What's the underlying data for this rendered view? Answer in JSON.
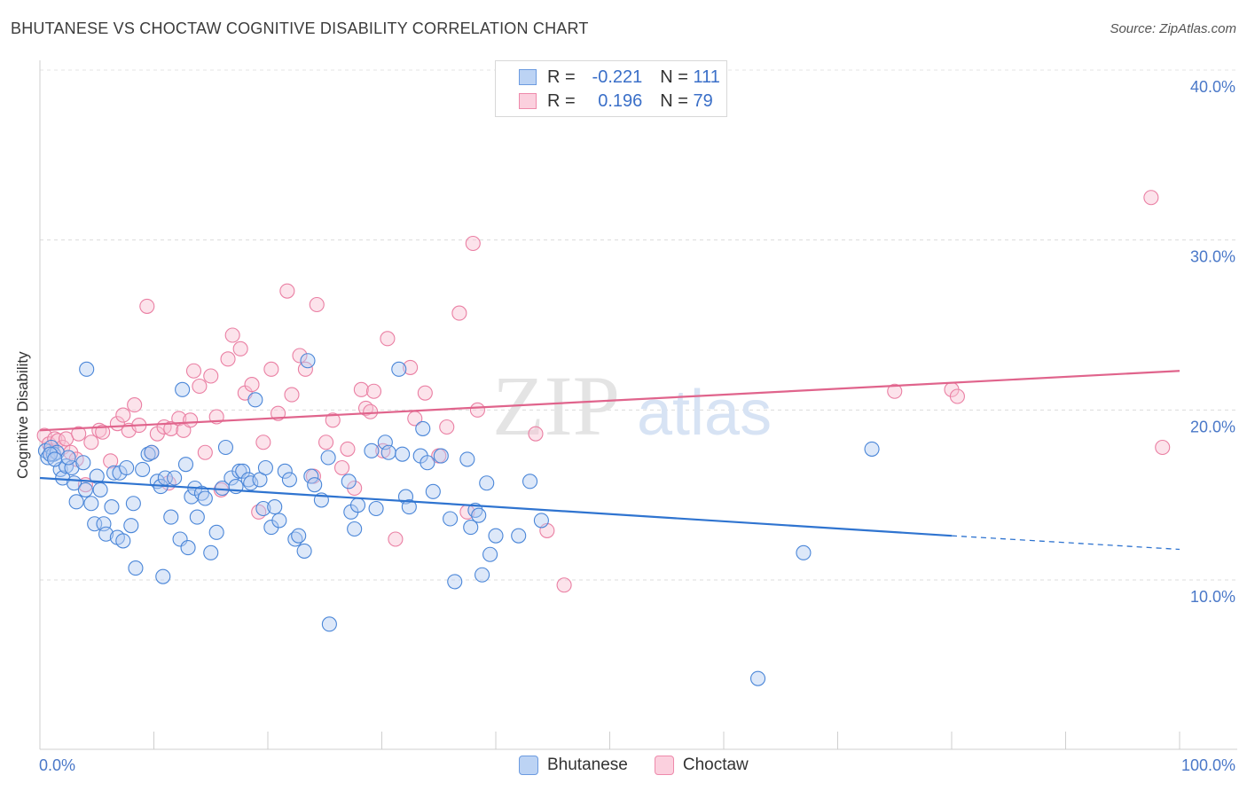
{
  "header": {
    "title": "BHUTANESE VS CHOCTAW COGNITIVE DISABILITY CORRELATION CHART",
    "source": "Source: ZipAtlas.com"
  },
  "watermark": {
    "zip": "ZIP",
    "atlas": "atlas"
  },
  "legend": {
    "rows": [
      {
        "r_label": "R =",
        "r_value": "-0.221",
        "n_label": "N =",
        "n_value": "111",
        "color": "#a9c6f0",
        "border": "#6c9be0"
      },
      {
        "r_label": "R =",
        "r_value": " 0.196",
        "n_label": "N =",
        "n_value": "79",
        "color": "#f9c2d4",
        "border": "#ee8aab"
      }
    ]
  },
  "bottom_legend": {
    "items": [
      "Bhutanese",
      "Choctaw"
    ]
  },
  "chart_data": {
    "type": "scatter",
    "title": "BHUTANESE VS CHOCTAW COGNITIVE DISABILITY CORRELATION CHART",
    "xlabel": "",
    "ylabel": "Cognitive Disability",
    "xlim": [
      0,
      100
    ],
    "ylim": [
      0,
      42
    ],
    "x_tick_labels": [
      "0.0%",
      "100.0%"
    ],
    "y_ticks": [
      10,
      20,
      30,
      40
    ],
    "y_tick_labels": [
      "10.0%",
      "20.0%",
      "30.0%",
      "40.0%"
    ],
    "grid": "horizontal dashed",
    "colors": {
      "bhutanese": "#4a86d8",
      "choctaw": "#e8709a",
      "trend_blue": "#2f74d0",
      "trend_pink": "#e0648c"
    },
    "series": [
      {
        "name": "Bhutanese",
        "trend": {
          "x": [
            0,
            80
          ],
          "y": [
            16.0,
            12.6
          ],
          "dashed_to": [
            100,
            11.8
          ]
        },
        "points": [
          [
            0.5,
            17.6
          ],
          [
            0.7,
            17.2
          ],
          [
            1.0,
            17.8
          ],
          [
            1.2,
            17.4
          ],
          [
            1.5,
            17.5
          ],
          [
            1.8,
            16.5
          ],
          [
            2.0,
            16.0
          ],
          [
            2.3,
            16.7
          ],
          [
            2.8,
            16.6
          ],
          [
            3.0,
            15.7
          ],
          [
            3.2,
            14.6
          ],
          [
            3.8,
            16.9
          ],
          [
            4.0,
            15.3
          ],
          [
            4.1,
            22.4
          ],
          [
            4.5,
            14.5
          ],
          [
            4.8,
            13.3
          ],
          [
            5.0,
            16.1
          ],
          [
            5.3,
            15.3
          ],
          [
            5.6,
            13.3
          ],
          [
            5.8,
            12.7
          ],
          [
            6.3,
            14.3
          ],
          [
            6.5,
            16.3
          ],
          [
            6.8,
            12.5
          ],
          [
            7.0,
            16.3
          ],
          [
            7.3,
            12.3
          ],
          [
            7.6,
            16.6
          ],
          [
            8.0,
            13.2
          ],
          [
            8.2,
            14.5
          ],
          [
            8.4,
            10.7
          ],
          [
            9.0,
            16.5
          ],
          [
            9.5,
            17.4
          ],
          [
            9.8,
            17.5
          ],
          [
            10.3,
            15.8
          ],
          [
            10.6,
            15.5
          ],
          [
            10.8,
            10.2
          ],
          [
            11.0,
            16.0
          ],
          [
            11.5,
            13.7
          ],
          [
            11.8,
            16.0
          ],
          [
            12.3,
            12.4
          ],
          [
            12.5,
            21.2
          ],
          [
            12.8,
            16.8
          ],
          [
            13.0,
            11.9
          ],
          [
            13.3,
            14.9
          ],
          [
            13.6,
            15.4
          ],
          [
            13.8,
            13.7
          ],
          [
            14.2,
            15.1
          ],
          [
            14.5,
            14.8
          ],
          [
            15.0,
            11.6
          ],
          [
            15.5,
            12.8
          ],
          [
            16.0,
            15.4
          ],
          [
            16.3,
            17.8
          ],
          [
            16.8,
            16.0
          ],
          [
            17.2,
            15.5
          ],
          [
            17.5,
            16.4
          ],
          [
            17.8,
            16.4
          ],
          [
            18.3,
            15.9
          ],
          [
            18.5,
            15.7
          ],
          [
            18.9,
            20.6
          ],
          [
            19.3,
            15.9
          ],
          [
            19.6,
            14.2
          ],
          [
            19.8,
            16.6
          ],
          [
            20.3,
            13.1
          ],
          [
            20.6,
            14.3
          ],
          [
            21.0,
            13.5
          ],
          [
            21.5,
            16.4
          ],
          [
            21.9,
            15.9
          ],
          [
            22.4,
            12.4
          ],
          [
            22.7,
            12.6
          ],
          [
            23.2,
            11.7
          ],
          [
            23.8,
            16.1
          ],
          [
            23.5,
            22.9
          ],
          [
            24.1,
            15.6
          ],
          [
            24.7,
            14.7
          ],
          [
            25.4,
            7.4
          ],
          [
            25.3,
            17.2
          ],
          [
            27.1,
            15.8
          ],
          [
            27.3,
            14.0
          ],
          [
            27.6,
            13.0
          ],
          [
            27.9,
            14.4
          ],
          [
            29.1,
            17.6
          ],
          [
            29.5,
            14.2
          ],
          [
            30.3,
            18.1
          ],
          [
            30.6,
            17.5
          ],
          [
            31.5,
            22.4
          ],
          [
            31.8,
            17.4
          ],
          [
            32.1,
            14.9
          ],
          [
            32.4,
            14.3
          ],
          [
            33.6,
            18.9
          ],
          [
            33.4,
            17.3
          ],
          [
            34.0,
            16.9
          ],
          [
            34.5,
            15.2
          ],
          [
            35.2,
            17.3
          ],
          [
            36.0,
            13.6
          ],
          [
            36.4,
            9.9
          ],
          [
            37.5,
            17.1
          ],
          [
            37.8,
            13.1
          ],
          [
            38.2,
            14.1
          ],
          [
            38.5,
            13.8
          ],
          [
            38.8,
            10.3
          ],
          [
            39.2,
            15.7
          ],
          [
            39.5,
            11.5
          ],
          [
            40.0,
            12.6
          ],
          [
            42.0,
            12.6
          ],
          [
            43.0,
            15.8
          ],
          [
            44.0,
            13.5
          ],
          [
            63.0,
            4.2
          ],
          [
            67.0,
            11.6
          ],
          [
            73.0,
            17.7
          ],
          [
            0.9,
            17.4
          ],
          [
            1.3,
            17.1
          ],
          [
            2.5,
            17.2
          ]
        ]
      },
      {
        "name": "Choctaw",
        "trend": {
          "x": [
            0,
            100
          ],
          "y": [
            18.8,
            22.3
          ]
        },
        "points": [
          [
            0.4,
            18.5
          ],
          [
            0.8,
            18.0
          ],
          [
            1.0,
            17.6
          ],
          [
            1.3,
            18.3
          ],
          [
            1.6,
            18.2
          ],
          [
            2.0,
            17.8
          ],
          [
            2.3,
            18.3
          ],
          [
            2.7,
            17.5
          ],
          [
            3.2,
            17.1
          ],
          [
            3.4,
            18.6
          ],
          [
            4.0,
            15.6
          ],
          [
            4.5,
            18.1
          ],
          [
            5.2,
            18.8
          ],
          [
            5.5,
            18.7
          ],
          [
            6.2,
            17.0
          ],
          [
            6.8,
            19.2
          ],
          [
            7.3,
            19.7
          ],
          [
            7.8,
            18.8
          ],
          [
            8.3,
            20.3
          ],
          [
            8.7,
            19.1
          ],
          [
            9.4,
            26.1
          ],
          [
            9.8,
            17.5
          ],
          [
            10.3,
            18.6
          ],
          [
            10.9,
            19.0
          ],
          [
            11.3,
            15.7
          ],
          [
            11.5,
            18.9
          ],
          [
            12.2,
            19.5
          ],
          [
            12.6,
            18.8
          ],
          [
            13.2,
            19.4
          ],
          [
            13.5,
            22.3
          ],
          [
            14.0,
            21.4
          ],
          [
            14.5,
            17.5
          ],
          [
            15.0,
            22.0
          ],
          [
            15.5,
            19.6
          ],
          [
            15.9,
            15.3
          ],
          [
            16.5,
            23.0
          ],
          [
            16.9,
            24.4
          ],
          [
            17.6,
            23.6
          ],
          [
            18.0,
            21.0
          ],
          [
            18.6,
            21.5
          ],
          [
            19.2,
            14.0
          ],
          [
            19.6,
            18.1
          ],
          [
            20.3,
            22.4
          ],
          [
            20.9,
            19.8
          ],
          [
            21.7,
            27.0
          ],
          [
            22.1,
            20.9
          ],
          [
            22.8,
            23.2
          ],
          [
            23.3,
            22.4
          ],
          [
            24.0,
            16.1
          ],
          [
            24.3,
            26.2
          ],
          [
            25.1,
            18.1
          ],
          [
            25.7,
            19.4
          ],
          [
            26.5,
            16.6
          ],
          [
            27.0,
            17.7
          ],
          [
            27.6,
            15.4
          ],
          [
            28.2,
            21.2
          ],
          [
            28.6,
            20.1
          ],
          [
            29.0,
            19.9
          ],
          [
            29.3,
            21.1
          ],
          [
            30.1,
            17.6
          ],
          [
            30.5,
            24.2
          ],
          [
            31.2,
            12.4
          ],
          [
            32.5,
            22.5
          ],
          [
            32.9,
            19.5
          ],
          [
            33.8,
            21.0
          ],
          [
            35.0,
            17.3
          ],
          [
            35.7,
            19.0
          ],
          [
            36.8,
            25.7
          ],
          [
            37.5,
            14.0
          ],
          [
            38.0,
            29.8
          ],
          [
            38.4,
            20.0
          ],
          [
            43.5,
            18.6
          ],
          [
            44.5,
            12.9
          ],
          [
            46.0,
            9.7
          ],
          [
            75.0,
            21.1
          ],
          [
            80.0,
            21.2
          ],
          [
            80.5,
            20.8
          ],
          [
            97.5,
            32.5
          ],
          [
            98.5,
            17.8
          ]
        ]
      }
    ]
  },
  "axis": {
    "ylabel": "Cognitive Disability"
  }
}
